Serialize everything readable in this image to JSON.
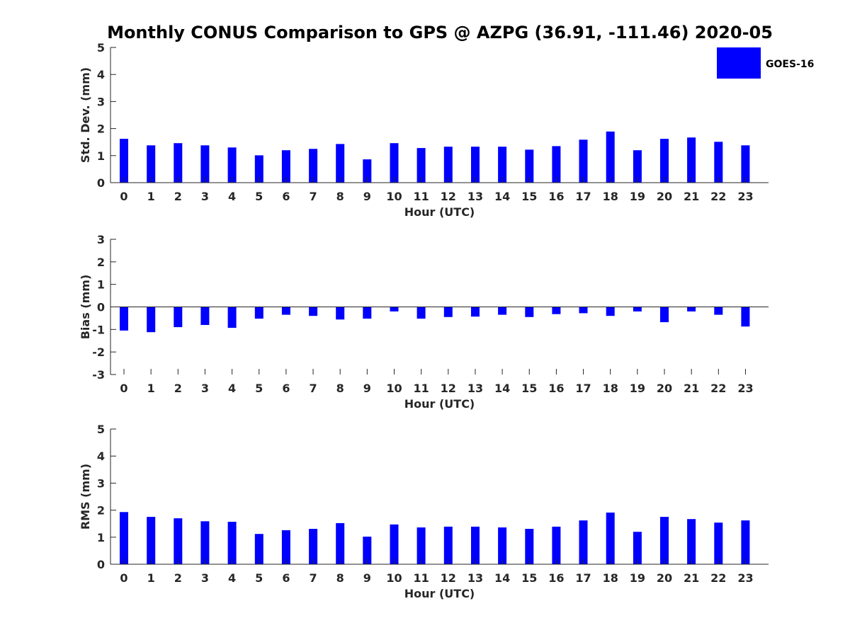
{
  "figure": {
    "title": "Monthly CONUS Comparison to GPS @ AZPG (36.91, -111.46) 2020-05",
    "bar_color": "#0000ff",
    "axis_color": "#262626"
  },
  "legend": {
    "label": "GOES-16",
    "color": "#0000ff",
    "placement": "top-right"
  },
  "chart_data": [
    {
      "type": "bar",
      "xlabel": "Hour (UTC)",
      "ylabel": "Std. Dev. (mm)",
      "ylim": [
        0,
        5
      ],
      "yticks": [
        0,
        1,
        2,
        3,
        4,
        5
      ],
      "categories": [
        "0",
        "1",
        "2",
        "3",
        "4",
        "5",
        "6",
        "7",
        "8",
        "9",
        "10",
        "11",
        "12",
        "13",
        "14",
        "15",
        "16",
        "17",
        "18",
        "19",
        "20",
        "21",
        "22",
        "23"
      ],
      "series": [
        {
          "name": "GOES-16",
          "values": [
            1.62,
            1.38,
            1.46,
            1.38,
            1.3,
            1.01,
            1.2,
            1.25,
            1.43,
            0.86,
            1.46,
            1.28,
            1.33,
            1.33,
            1.33,
            1.22,
            1.35,
            1.59,
            1.89,
            1.2,
            1.62,
            1.67,
            1.51,
            1.38
          ]
        }
      ]
    },
    {
      "type": "bar",
      "xlabel": "Hour (UTC)",
      "ylabel": "Bias (mm)",
      "ylim": [
        -3,
        3
      ],
      "yticks": [
        -3,
        -2,
        -1,
        0,
        1,
        2,
        3
      ],
      "categories": [
        "0",
        "1",
        "2",
        "3",
        "4",
        "5",
        "6",
        "7",
        "8",
        "9",
        "10",
        "11",
        "12",
        "13",
        "14",
        "15",
        "16",
        "17",
        "18",
        "19",
        "20",
        "21",
        "22",
        "23"
      ],
      "series": [
        {
          "name": "GOES-16",
          "values": [
            -1.05,
            -1.12,
            -0.9,
            -0.8,
            -0.93,
            -0.52,
            -0.35,
            -0.4,
            -0.56,
            -0.52,
            -0.2,
            -0.52,
            -0.45,
            -0.43,
            -0.35,
            -0.45,
            -0.32,
            -0.28,
            -0.4,
            -0.2,
            -0.68,
            -0.2,
            -0.35,
            -0.87
          ]
        }
      ]
    },
    {
      "type": "bar",
      "xlabel": "Hour (UTC)",
      "ylabel": "RMS (mm)",
      "ylim": [
        0,
        5
      ],
      "yticks": [
        0,
        1,
        2,
        3,
        4,
        5
      ],
      "categories": [
        "0",
        "1",
        "2",
        "3",
        "4",
        "5",
        "6",
        "7",
        "8",
        "9",
        "10",
        "11",
        "12",
        "13",
        "14",
        "15",
        "16",
        "17",
        "18",
        "19",
        "20",
        "21",
        "22",
        "23"
      ],
      "series": [
        {
          "name": "GOES-16",
          "values": [
            1.93,
            1.75,
            1.7,
            1.59,
            1.57,
            1.12,
            1.26,
            1.31,
            1.52,
            1.02,
            1.47,
            1.36,
            1.39,
            1.39,
            1.36,
            1.31,
            1.39,
            1.62,
            1.91,
            1.2,
            1.75,
            1.67,
            1.54,
            1.62
          ]
        }
      ]
    }
  ]
}
